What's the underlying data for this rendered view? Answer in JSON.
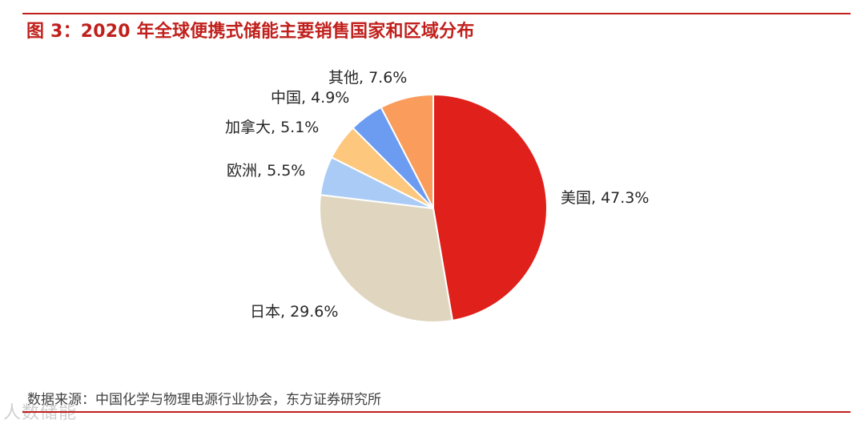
{
  "header": {
    "title": "图 3：2020 年全球便携式储能主要销售国家和区域分布"
  },
  "footer": {
    "source": "数据来源：中国化学与物理电源行业协会，东方证券研究所",
    "watermark": "人数储能"
  },
  "chart_data": {
    "type": "pie",
    "title": "",
    "slices": [
      {
        "label": "美国",
        "value": 47.3,
        "display": "美国, 47.3%",
        "color": "#e0201b"
      },
      {
        "label": "日本",
        "value": 29.6,
        "display": "日本, 29.6%",
        "color": "#e0d6c0"
      },
      {
        "label": "欧洲",
        "value": 5.5,
        "display": "欧洲, 5.5%",
        "color": "#a9cbf5"
      },
      {
        "label": "加拿大",
        "value": 5.1,
        "display": "加拿大, 5.1%",
        "color": "#fdc77e"
      },
      {
        "label": "中国",
        "value": 4.9,
        "display": "中国, 4.9%",
        "color": "#6b9cf1"
      },
      {
        "label": "其他",
        "value": 7.6,
        "display": "其他, 7.6%",
        "color": "#fa9c5b"
      }
    ],
    "start_angle": "12 o'clock",
    "direction": "clockwise",
    "legend": "none"
  }
}
